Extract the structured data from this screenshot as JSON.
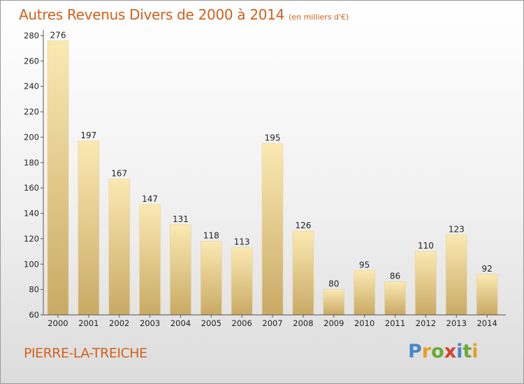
{
  "title": "Autres Revenus Divers de 2000 à 2014",
  "subtitle": "(en milliers d'€)",
  "location": "PIERRE-LA-TREICHE",
  "logo": {
    "text": "Proxiti",
    "letters": [
      "P",
      "r",
      "o",
      "x",
      "i",
      "t",
      "i"
    ]
  },
  "colors": {
    "title": "#d2601a",
    "bar_light": "#f9e4a6",
    "bar_dark": "#c8a862",
    "axis": "#555555"
  },
  "chart_data": {
    "type": "bar",
    "title": "Autres Revenus Divers de 2000 à 2014",
    "categories": [
      "2000",
      "2001",
      "2002",
      "2003",
      "2004",
      "2005",
      "2006",
      "2007",
      "2008",
      "2009",
      "2010",
      "2011",
      "2012",
      "2013",
      "2014"
    ],
    "values": [
      276,
      197,
      167,
      147,
      131,
      118,
      113,
      195,
      126,
      80,
      95,
      86,
      110,
      123,
      92
    ],
    "ylim": [
      60,
      280
    ],
    "yticks": [
      60,
      80,
      100,
      120,
      140,
      160,
      180,
      200,
      220,
      240,
      260,
      280
    ],
    "xlabel": "",
    "ylabel": "",
    "grid": false,
    "data_labels": true
  }
}
